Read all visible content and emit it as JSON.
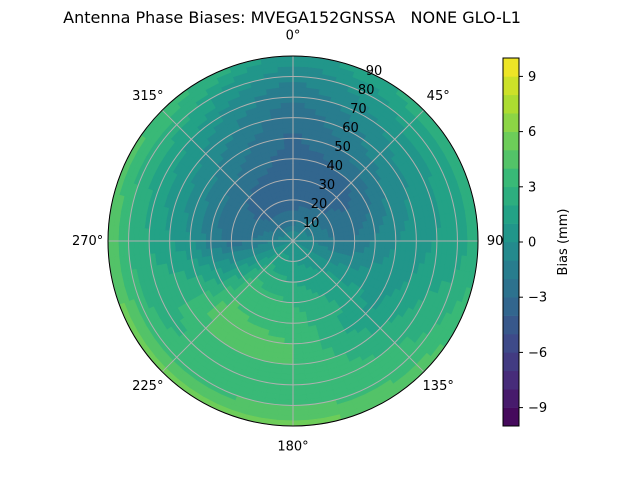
{
  "chart_data": {
    "type": "heatmap",
    "projection": "polar",
    "title": "Antenna Phase Biases: MVEGA152GNSSA   NONE GLO-L1",
    "theta_zero_location": "top",
    "theta_direction": "clockwise",
    "theta_ticks": [
      "0°",
      "45°",
      "90°",
      "135°",
      "180°",
      "225°",
      "270°",
      "315°"
    ],
    "theta_tick_values": [
      0,
      45,
      90,
      135,
      180,
      225,
      270,
      315
    ],
    "r_ticks": [
      "10",
      "20",
      "30",
      "40",
      "50",
      "60",
      "70",
      "80",
      "90"
    ],
    "r_tick_values": [
      10,
      20,
      30,
      40,
      50,
      60,
      70,
      80,
      90
    ],
    "rlim": [
      0,
      90
    ],
    "grid": true,
    "colorbar": {
      "label": "Bias (mm)",
      "vmin": -10,
      "vmax": 10,
      "levels": 20,
      "tick_values": [
        -9,
        -6,
        -3,
        0,
        3,
        6,
        9
      ],
      "tick_labels": [
        "−9",
        "−6",
        "−3",
        "0",
        "3",
        "6",
        "9"
      ],
      "colormap": [
        "#440154",
        "#482878",
        "#3e4989",
        "#31688e",
        "#26828e",
        "#1f9e89",
        "#35b779",
        "#6ece58",
        "#b5de2b",
        "#fde725"
      ]
    },
    "field": [
      {
        "az": 0,
        "el_bias": [
          0,
          -2.5,
          -3.5,
          -3.8,
          -3.5,
          -3.2,
          -2.8,
          -2.0,
          -1.0,
          0.5
        ]
      },
      {
        "az": 45,
        "el_bias": [
          0,
          -1.5,
          -3.0,
          -3.5,
          -3.0,
          -1.5,
          -0.5,
          0.5,
          1.5,
          2.5
        ]
      },
      {
        "az": 90,
        "el_bias": [
          0,
          -1.0,
          -2.0,
          -2.0,
          -1.0,
          0,
          0.5,
          1.0,
          1.5,
          2.5
        ]
      },
      {
        "az": 135,
        "el_bias": [
          0,
          0.5,
          1.0,
          1.5,
          1.5,
          1.0,
          2.0,
          3.0,
          3.5,
          4.5
        ]
      },
      {
        "az": 180,
        "el_bias": [
          0,
          1.0,
          2.0,
          3.0,
          3.5,
          4.0,
          4.0,
          3.5,
          4.0,
          5.5
        ]
      },
      {
        "az": 225,
        "el_bias": [
          0,
          1.5,
          2.5,
          3.5,
          4.0,
          4.5,
          4.0,
          3.0,
          3.5,
          5.5
        ]
      },
      {
        "az": 270,
        "el_bias": [
          0,
          -1.0,
          -2.0,
          -2.5,
          -1.5,
          0,
          1.0,
          2.0,
          3.0,
          5.0
        ]
      },
      {
        "az": 315,
        "el_bias": [
          0,
          -2.5,
          -3.5,
          -3.0,
          -2.0,
          -1.0,
          0,
          1.0,
          2.5,
          4.0
        ]
      }
    ]
  }
}
